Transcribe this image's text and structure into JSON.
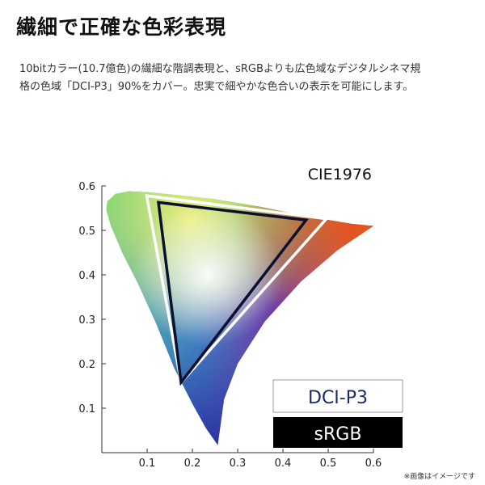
{
  "header": {
    "title": "繊細で正確な色彩表現",
    "description_line1": "10bitカラー(10.7億色)の繊細な階調表現と、sRGBよりも広色域なデジタルシネマ規",
    "description_line2": "格の色域「DCI-P3」90%をカバー。忠実で細やかな色合いの表示を可能にします。"
  },
  "footnote": "※画像はイメージです",
  "colors": {
    "dci_triangle": "#ffffff",
    "srgb_triangle": "#0b1030",
    "dci_legend_text": "#1b2a6b",
    "srgb_legend_bg": "#000000",
    "srgb_legend_text": "#ffffff"
  },
  "chart_data": {
    "type": "diagram",
    "title": "CIE1976",
    "x_ticks": [
      "0.1",
      "0.2",
      "0.3",
      "0.4",
      "0.5",
      "0.6"
    ],
    "y_ticks": [
      "0.1",
      "0.2",
      "0.3",
      "0.4",
      "0.5",
      "0.6"
    ],
    "xlim": [
      0,
      0.6
    ],
    "ylim": [
      0,
      0.6
    ],
    "grid": false,
    "spectral_locus_uv": [
      [
        0.256,
        0.017
      ],
      [
        0.23,
        0.055
      ],
      [
        0.2,
        0.11
      ],
      [
        0.16,
        0.19
      ],
      [
        0.12,
        0.29
      ],
      [
        0.08,
        0.38
      ],
      [
        0.045,
        0.45
      ],
      [
        0.02,
        0.51
      ],
      [
        0.01,
        0.545
      ],
      [
        0.012,
        0.565
      ],
      [
        0.03,
        0.582
      ],
      [
        0.06,
        0.588
      ],
      [
        0.1,
        0.586
      ],
      [
        0.16,
        0.58
      ],
      [
        0.25,
        0.57
      ],
      [
        0.35,
        0.553
      ],
      [
        0.45,
        0.532
      ],
      [
        0.55,
        0.515
      ],
      [
        0.6,
        0.51
      ],
      [
        0.52,
        0.455
      ],
      [
        0.44,
        0.385
      ],
      [
        0.36,
        0.295
      ],
      [
        0.3,
        0.2
      ],
      [
        0.27,
        0.12
      ],
      [
        0.256,
        0.017
      ]
    ],
    "series": [
      {
        "name": "DCI-P3",
        "points_uv": [
          [
            0.099,
            0.578
          ],
          [
            0.496,
            0.526
          ],
          [
            0.175,
            0.158
          ]
        ]
      },
      {
        "name": "sRGB",
        "points_uv": [
          [
            0.125,
            0.563
          ],
          [
            0.451,
            0.523
          ],
          [
            0.175,
            0.158
          ]
        ]
      }
    ],
    "legend": [
      "DCI-P3",
      "sRGB"
    ],
    "legend_position": "bottom-right"
  }
}
